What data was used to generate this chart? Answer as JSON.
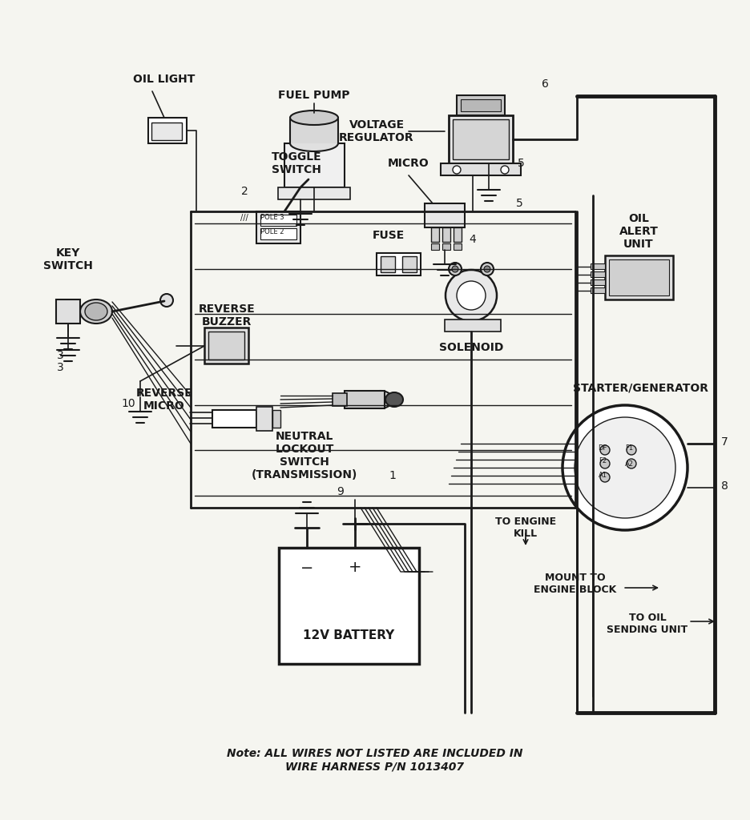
{
  "bg_color": "#f5f5f0",
  "line_color": "#1a1a1a",
  "note_line1": "Note: ALL WIRES NOT LISTED ARE INCLUDED IN",
  "note_line2": "WIRE HARNESS P/N 1013407",
  "labels": {
    "oil_light": "OIL LIGHT",
    "fuel_pump": "FUEL PUMP",
    "voltage_regulator": "VOLTAGE\nREGULATOR",
    "key_switch": "KEY\nSWITCH",
    "toggle_switch": "TOGGLE\nSWITCH",
    "micro": "MICRO",
    "fuse": "FUSE",
    "solenoid": "SOLENOID",
    "oil_alert": "OIL\nALERT\nUNIT",
    "reverse_micro": "REVERSE\nMICRO",
    "reverse_buzzer": "REVERSE\nBUZZER",
    "neutral_lockout": "NEUTRAL\nLOCKOUT\nSWITCH\n(TRANSMISSION)",
    "battery": "12V BATTERY",
    "starter_gen": "STARTER/GENERATOR",
    "to_engine_kill": "TO ENGINE\nKILL",
    "mount_engine_block": "MOUNT TO\nENGINE BLOCK",
    "to_oil_sending": "TO OIL\nSENDING UNIT"
  }
}
